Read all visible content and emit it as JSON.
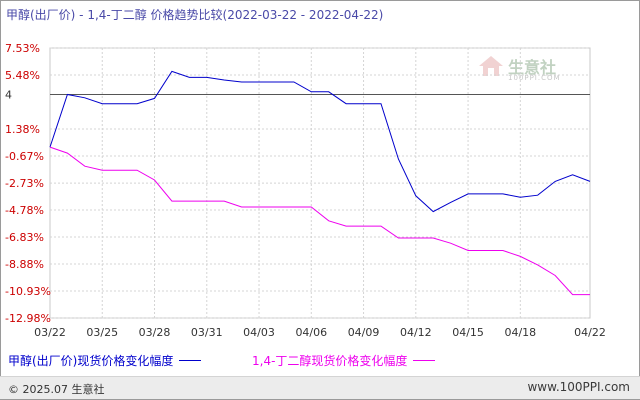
{
  "title": "甲醇(出厂价) - 1,4-丁二醇 价格趋势比较(2022-03-22 - 2022-04-22)",
  "chart_data": {
    "type": "line",
    "x": [
      "03/22",
      "03/23",
      "03/24",
      "03/25",
      "03/26",
      "03/27",
      "03/28",
      "03/29",
      "03/30",
      "03/31",
      "04/01",
      "04/02",
      "04/03",
      "04/04",
      "04/05",
      "04/06",
      "04/07",
      "04/08",
      "04/09",
      "04/10",
      "04/11",
      "04/12",
      "04/13",
      "04/14",
      "04/15",
      "04/16",
      "04/17",
      "04/18",
      "04/19",
      "04/20",
      "04/21",
      "04/22"
    ],
    "x_tick_labels": [
      "03/22",
      "03/25",
      "03/28",
      "03/31",
      "04/03",
      "04/06",
      "04/09",
      "04/12",
      "04/15",
      "04/18",
      "04/22"
    ],
    "y_tick_labels": [
      "7.53%",
      "5.48%",
      "4",
      "1.38%",
      "-0.67%",
      "-2.73%",
      "-4.78%",
      "-6.83%",
      "-8.88%",
      "-10.93%",
      "-12.98%"
    ],
    "y_ticks": [
      7.53,
      5.48,
      4.0,
      1.38,
      -0.67,
      -2.73,
      -4.78,
      -6.83,
      -8.88,
      -10.93,
      -12.98
    ],
    "ylim": [
      -12.98,
      7.53
    ],
    "grid": true,
    "series": [
      {
        "name": "甲醇(出厂价)现货价格变化幅度",
        "color": "#0000cc",
        "values": [
          0.0,
          4.0,
          3.75,
          3.3,
          3.3,
          3.3,
          3.7,
          5.75,
          5.3,
          5.3,
          5.1,
          4.95,
          4.95,
          4.95,
          4.95,
          4.2,
          4.2,
          3.3,
          3.3,
          3.3,
          -0.9,
          -3.7,
          -4.9,
          -4.2,
          -3.55,
          -3.55,
          -3.55,
          -3.8,
          -3.65,
          -2.6,
          -2.1,
          -2.6
        ]
      },
      {
        "name": "1,4-丁二醇现货价格变化幅度",
        "color": "#ee00ee",
        "values": [
          0.0,
          -0.45,
          -1.45,
          -1.75,
          -1.75,
          -1.75,
          -2.5,
          -4.1,
          -4.1,
          -4.1,
          -4.1,
          -4.55,
          -4.55,
          -4.55,
          -4.55,
          -4.55,
          -5.6,
          -6.0,
          -6.0,
          -6.0,
          -6.9,
          -6.9,
          -6.9,
          -7.3,
          -7.85,
          -7.85,
          -7.85,
          -8.3,
          -8.95,
          -9.75,
          -11.2,
          -11.2
        ]
      }
    ]
  },
  "footer": {
    "copyright": "© 2025.07 生意社",
    "site": "www.100PPI.com"
  },
  "watermark": {
    "text": "生意社",
    "sub": "100PPI.COM"
  }
}
